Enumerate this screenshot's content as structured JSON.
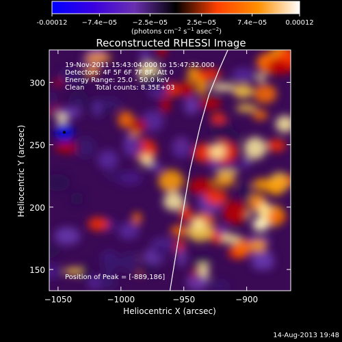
{
  "colorbar": {
    "tick_labels": [
      "-0.00012",
      "−7.4e−05",
      "−2.5e−05",
      "2.5e−05",
      "7.4e−05",
      "0.00012"
    ],
    "tick_values": [
      -0.00012,
      -7.4e-05,
      -2.5e-05,
      2.5e-05,
      7.4e-05,
      0.00012
    ],
    "range": [
      -0.00012,
      0.00012
    ],
    "units_main": "(photons cm",
    "units_sup1": "−2",
    "units_mid": " s",
    "units_sup2": "−1",
    "units_end": " asec",
    "units_sup3": "−2",
    "units_close": ")",
    "colors": [
      "#0000ff",
      "#3a00e0",
      "#6a30b0",
      "#000000",
      "#ff4000",
      "#ff9000",
      "#ffffff"
    ]
  },
  "chart_data": {
    "type": "heatmap",
    "title": "Reconstructed RHESSI Image",
    "xlabel": "Heliocentric X (arcsec)",
    "ylabel": "Heliocentric Y (arcsec)",
    "xlim": [
      -1057,
      -865
    ],
    "ylim": [
      133,
      326
    ],
    "xticks": [
      -1050,
      -1000,
      -950,
      -900
    ],
    "xtick_labels": [
      "−1050",
      "−1000",
      "−950",
      "−900"
    ],
    "yticks": [
      150,
      200,
      250,
      300
    ],
    "ytick_labels": [
      "150",
      "200",
      "250",
      "300"
    ],
    "annotations": [
      "19-Nov-2011 15:43:04.000 to 15:47:32.000",
      "Detectors: 4F 5F 6F 7F 8F, Att 0",
      "Energy Range: 25.0 - 50.0 keV",
      "Clean     Total counts: 8.35E+03"
    ],
    "peak_label": "Position of Peak = [-889,186]",
    "peak": [
      -889,
      186
    ],
    "min_marker": [
      -1045,
      260
    ],
    "limb_curve": {
      "x": [
        -961,
        -955,
        -945,
        -937,
        -930,
        -922,
        -915
      ],
      "y": [
        133,
        170,
        230,
        265,
        290,
        310,
        326
      ]
    },
    "footer": "14-Aug-2013 19:48"
  }
}
